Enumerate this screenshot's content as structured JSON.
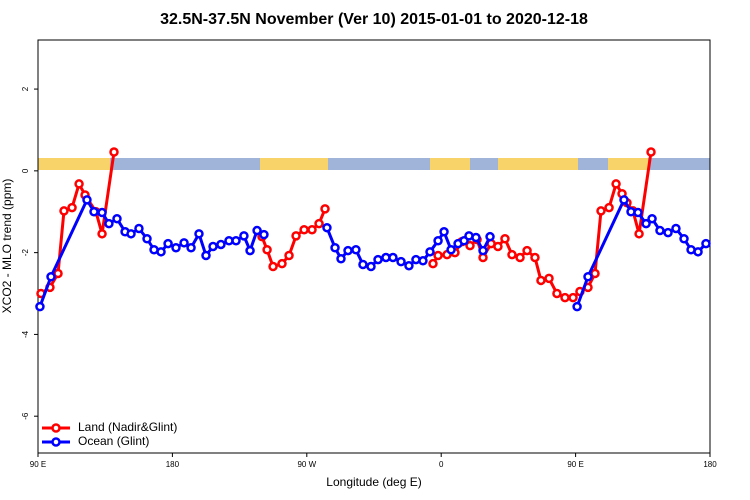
{
  "chart_data": {
    "type": "line",
    "title": "32.5N-37.5N November (Ver 10)   2015-01-01 to 2020-12-18",
    "x_label": "Longitude (deg E)",
    "y_label": "XCO2 - MLO trend (ppm)",
    "xlim": [
      90,
      540
    ],
    "ylim": [
      -6.9,
      3.2
    ],
    "xticks": [
      {
        "value": 90,
        "label": "90 E"
      },
      {
        "value": 180,
        "label": "180"
      },
      {
        "value": 270,
        "label": "90 W"
      },
      {
        "value": 360,
        "label": "0"
      },
      {
        "value": 450,
        "label": "90 E"
      },
      {
        "value": 540,
        "label": "180"
      }
    ],
    "yticks": [
      -6,
      -4,
      -2,
      0,
      2
    ],
    "legend": "bottom-left",
    "series": [
      {
        "name": "Land (Nadir&Glint)",
        "color": "#ff0000",
        "x": [
          92.0,
          98.0,
          103.4,
          107.4,
          112.8,
          117.5,
          121.5,
          128.8,
          132.9,
          140.9,
          null,
          240.0,
          243.4,
          247.4,
          253.4,
          258.1,
          262.8,
          268.2,
          273.5,
          278.2,
          282.2,
          null,
          354.5,
          357.9,
          363.9,
          369.2,
          373.9,
          379.3,
          384.0,
          388.0,
          393.4,
          398.0,
          402.7,
          407.4,
          412.8,
          417.5,
          422.8,
          426.8,
          432.2,
          437.5,
          442.9,
          448.3,
          452.9,
          458.3,
          463.0,
          467.0,
          472.4,
          477.1,
          481.1,
          484.4,
          488.4,
          492.5,
          500.5
        ],
        "values": [
          -3.0,
          -2.85,
          -2.51,
          -0.98,
          -0.9,
          -0.32,
          -0.59,
          -1.0,
          -1.54,
          0.46,
          null,
          -1.61,
          -1.93,
          -2.34,
          -2.27,
          -2.07,
          -1.59,
          -1.44,
          -1.44,
          -1.29,
          -0.93,
          null,
          -2.27,
          -2.07,
          -2.05,
          -2.0,
          -1.73,
          -1.83,
          -1.68,
          -2.12,
          -1.78,
          -1.85,
          -1.66,
          -2.05,
          -2.12,
          -1.95,
          -2.12,
          -2.68,
          -2.63,
          -3.0,
          -3.1,
          -3.1,
          -2.95,
          -2.85,
          -2.51,
          -0.98,
          -0.9,
          -0.32,
          -0.56,
          -0.78,
          -0.98,
          -1.54,
          0.46
        ]
      },
      {
        "name": "Ocean (Glint)",
        "color": "#0000ff",
        "x": [
          91.3,
          98.7,
          122.8,
          127.5,
          132.9,
          137.5,
          142.9,
          148.3,
          152.3,
          157.6,
          163.0,
          167.7,
          172.4,
          177.1,
          182.4,
          187.8,
          192.5,
          197.8,
          202.5,
          207.2,
          212.5,
          217.9,
          222.6,
          227.9,
          232.0,
          236.7,
          241.3,
          null,
          283.5,
          288.9,
          292.9,
          297.6,
          302.9,
          307.6,
          313.0,
          317.7,
          323.0,
          327.7,
          333.1,
          338.4,
          343.1,
          347.8,
          352.5,
          357.9,
          361.9,
          366.6,
          371.3,
          375.3,
          378.6,
          383.3,
          388.0,
          392.7,
          null,
          451.0,
          458.3,
          482.4,
          487.1,
          491.8,
          497.2,
          501.2,
          506.5,
          511.9,
          517.2,
          522.6,
          527.3,
          532.0,
          537.3
        ],
        "values": [
          -3.32,
          -2.59,
          -0.71,
          -1.0,
          -1.02,
          -1.29,
          -1.17,
          -1.49,
          -1.54,
          -1.41,
          -1.66,
          -1.93,
          -1.98,
          -1.78,
          -1.88,
          -1.76,
          -1.88,
          -1.54,
          -2.07,
          -1.85,
          -1.8,
          -1.71,
          -1.71,
          -1.59,
          -1.95,
          -1.46,
          -1.56,
          null,
          -1.39,
          -1.88,
          -2.15,
          -1.95,
          -1.93,
          -2.29,
          -2.34,
          -2.17,
          -2.12,
          -2.12,
          -2.22,
          -2.32,
          -2.17,
          -2.2,
          -1.98,
          -1.71,
          -1.49,
          -1.93,
          -1.78,
          -1.71,
          -1.59,
          -1.63,
          -1.95,
          -1.61,
          null,
          -3.32,
          -2.59,
          -0.71,
          -1.0,
          -1.02,
          -1.29,
          -1.17,
          -1.46,
          -1.51,
          -1.41,
          -1.66,
          -1.93,
          -1.98,
          -1.78
        ]
      }
    ]
  }
}
